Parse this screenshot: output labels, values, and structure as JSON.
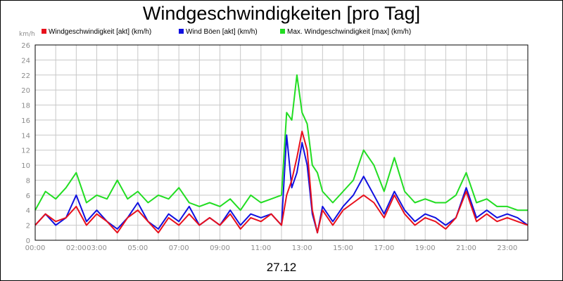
{
  "chart_data": {
    "type": "line",
    "title": "Windgeschwindigkeiten [pro Tag]",
    "ylabel": "km/h",
    "xlabel": "27.12",
    "ylim": [
      0,
      26
    ],
    "y_ticks": [
      0,
      2,
      4,
      6,
      8,
      10,
      12,
      14,
      16,
      18,
      20,
      22,
      24,
      26
    ],
    "x_ticks": [
      {
        "label": "00:00",
        "hour": 0
      },
      {
        "label": "02:00",
        "hour": 2
      },
      {
        "label": "03:00",
        "hour": 3
      },
      {
        "label": "05:00",
        "hour": 5
      },
      {
        "label": "07:00",
        "hour": 7
      },
      {
        "label": "09:00",
        "hour": 9
      },
      {
        "label": "11:00",
        "hour": 11
      },
      {
        "label": "13:00",
        "hour": 13
      },
      {
        "label": "15:00",
        "hour": 15
      },
      {
        "label": "17:00",
        "hour": 17
      },
      {
        "label": "19:00",
        "hour": 19
      },
      {
        "label": "21:00",
        "hour": 21
      },
      {
        "label": "23:00",
        "hour": 23
      }
    ],
    "grid": true,
    "legend_position": "top",
    "x_hours": [
      0,
      0.5,
      1,
      1.5,
      2,
      2.5,
      3,
      3.5,
      4,
      4.5,
      5,
      5.5,
      6,
      6.5,
      7,
      7.5,
      8,
      8.5,
      9,
      9.5,
      10,
      10.5,
      11,
      11.5,
      12,
      12.25,
      12.5,
      12.75,
      13,
      13.25,
      13.5,
      13.75,
      14,
      14.5,
      15,
      15.5,
      16,
      16.5,
      17,
      17.5,
      18,
      18.5,
      19,
      19.5,
      20,
      20.5,
      21,
      21.5,
      22,
      22.5,
      23,
      23.5,
      24
    ],
    "series": [
      {
        "name": "Windgeschwindigkeit [akt] (km/h)",
        "color": "#e8101c",
        "values": [
          2,
          3.5,
          2.5,
          3,
          4.5,
          2,
          3.5,
          2.5,
          1,
          3,
          4,
          2.5,
          1,
          3,
          2,
          3.5,
          2,
          3,
          2,
          3.5,
          1.5,
          3,
          2.5,
          3.5,
          2,
          6,
          8,
          11,
          14.5,
          12,
          4,
          1,
          4,
          2,
          4,
          5,
          6,
          5,
          3,
          6,
          3.5,
          2,
          3,
          2.5,
          1.5,
          3,
          6.5,
          2.5,
          3.5,
          2.5,
          3,
          2.5,
          2
        ]
      },
      {
        "name": "Wind Böen [akt] (km/h)",
        "color": "#1010e0",
        "values": [
          2,
          3.5,
          2,
          3,
          6,
          2.5,
          4,
          2.5,
          1.5,
          3,
          5,
          2.5,
          1.5,
          3.5,
          2.5,
          4.5,
          2,
          3,
          2,
          4,
          2,
          3.5,
          3,
          3.5,
          2,
          14,
          7,
          9,
          13,
          10,
          3.5,
          1,
          4.5,
          2.5,
          4.5,
          6,
          8.5,
          6,
          3.5,
          6.5,
          4,
          2.5,
          3.5,
          3,
          2,
          3,
          7,
          3,
          4,
          3,
          3.5,
          3,
          2
        ]
      },
      {
        "name": "Max. Windgeschwindigkeit [max] (km/h)",
        "color": "#22dd22",
        "values": [
          4,
          6.5,
          5.5,
          7,
          9,
          5,
          6,
          5.5,
          8,
          5.5,
          6.5,
          5,
          6,
          5.5,
          7,
          5,
          4.5,
          5,
          4.5,
          5.5,
          4,
          6,
          5,
          5.5,
          6,
          17,
          16,
          22,
          17,
          15.5,
          10,
          9,
          6.5,
          5,
          6.5,
          8,
          12,
          10,
          6.5,
          11,
          6.5,
          5,
          5.5,
          5,
          5,
          6,
          9,
          5,
          5.5,
          4.5,
          4.5,
          4,
          4
        ]
      }
    ]
  }
}
